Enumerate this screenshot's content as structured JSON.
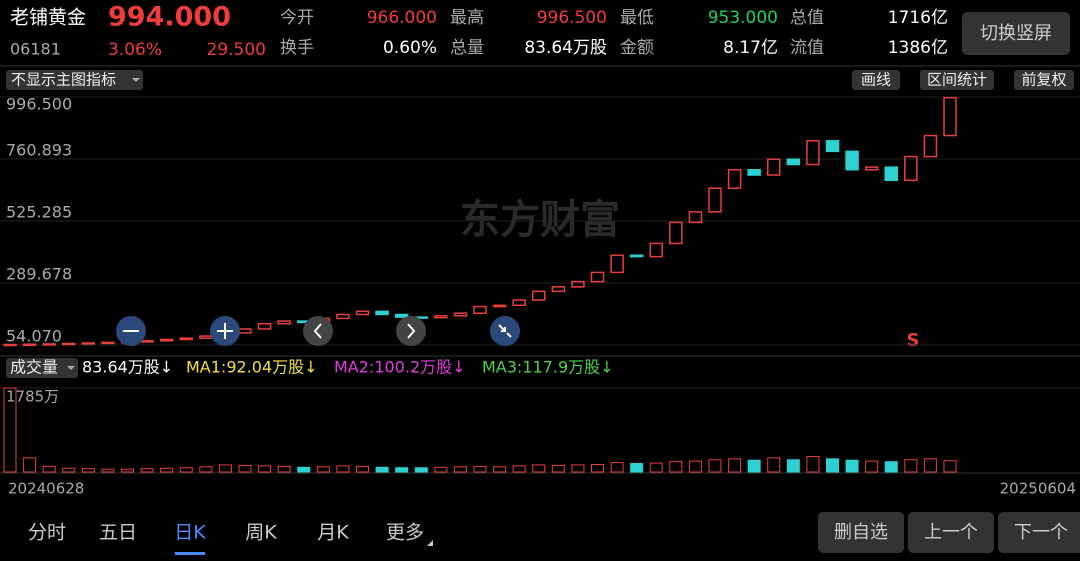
{
  "header": {
    "name": "老铺黄金",
    "price": "994.000",
    "code": "06181",
    "change_pct": "3.06%",
    "change_amt": "29.500",
    "fields": [
      {
        "label": "今开",
        "value": "966.000"
      },
      {
        "label": "最高",
        "value": "996.500"
      },
      {
        "label": "最低",
        "value": "953.000"
      },
      {
        "label": "总值",
        "value": "1716亿"
      },
      {
        "label": "换手",
        "value": "0.60%"
      },
      {
        "label": "总量",
        "value": "83.64万股"
      },
      {
        "label": "金额",
        "value": "8.17亿"
      },
      {
        "label": "流值",
        "value": "1386亿"
      }
    ],
    "button": "切换竖屏"
  },
  "toolbar": {
    "indicator": "不显示主图指标",
    "buttons": [
      "画线",
      "区间统计",
      "前复权"
    ]
  },
  "watermark": "东方财富",
  "signal": "S",
  "volume_legend": {
    "indicator": "成交量",
    "items": [
      "83.64万股↓",
      "MA1:92.04万股↓",
      "MA2:100.2万股↓",
      "MA3:117.9万股↓"
    ]
  },
  "chart_data": {
    "type": "candlestick",
    "up_color": "#e8413c",
    "down_color": "#2fd0d0",
    "ylim": [
      54.07,
      996.5
    ],
    "yticks": [
      {
        "value": 996.5,
        "label": "996.500"
      },
      {
        "value": 760.893,
        "label": "760.893"
      },
      {
        "value": 525.285,
        "label": "525.285"
      },
      {
        "value": 289.678,
        "label": "289.678"
      },
      {
        "value": 54.07,
        "label": "54.070"
      }
    ],
    "date_labels": [
      "20240628",
      "20250604"
    ],
    "open": [
      55,
      56,
      57,
      58,
      60,
      62,
      64,
      66,
      70,
      75,
      80,
      88,
      100,
      115,
      135,
      145,
      140,
      155,
      170,
      182,
      170,
      160,
      158,
      165,
      175,
      200,
      205,
      225,
      258,
      275,
      295,
      330,
      395,
      390,
      440,
      520,
      560,
      650,
      720,
      700,
      760,
      740,
      830,
      790,
      720,
      730,
      680,
      770,
      850
    ],
    "close": [
      56,
      57,
      58,
      60,
      62,
      64,
      66,
      70,
      75,
      80,
      88,
      100,
      115,
      135,
      145,
      140,
      155,
      170,
      182,
      170,
      160,
      158,
      165,
      175,
      200,
      205,
      225,
      258,
      275,
      295,
      330,
      395,
      390,
      440,
      520,
      560,
      650,
      720,
      700,
      760,
      740,
      830,
      790,
      720,
      730,
      680,
      770,
      850,
      994
    ],
    "volume": {
      "ylim": [
        0,
        1785
      ],
      "yticks": [
        {
          "value": 1785,
          "label": "1785万"
        }
      ],
      "values": [
        1785,
        300,
        120,
        80,
        70,
        60,
        60,
        70,
        80,
        90,
        110,
        150,
        140,
        130,
        120,
        100,
        110,
        130,
        120,
        100,
        90,
        90,
        100,
        110,
        120,
        110,
        130,
        150,
        140,
        150,
        160,
        200,
        180,
        190,
        220,
        230,
        260,
        280,
        250,
        300,
        260,
        330,
        280,
        250,
        230,
        220,
        260,
        280,
        240
      ]
    }
  },
  "tabs": [
    "分时",
    "五日",
    "日K",
    "周K",
    "月K",
    "更多"
  ],
  "actions": [
    "删自选",
    "上一个",
    "下一个"
  ]
}
